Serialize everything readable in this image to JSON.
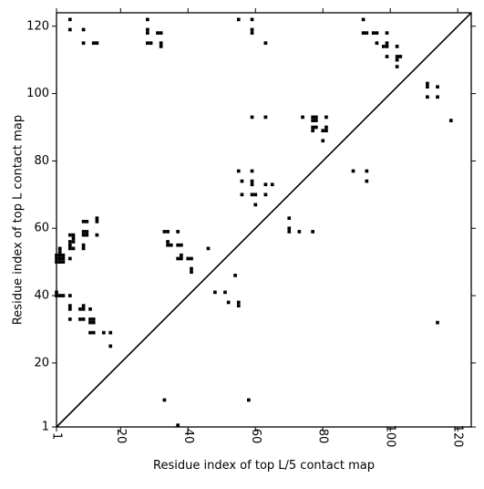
{
  "chart_data": {
    "type": "scatter",
    "title": "",
    "xlabel": "Residue index of top L/5 contact map",
    "ylabel": "Residue index of top L contact map",
    "xlim": [
      1,
      124
    ],
    "ylim": [
      1,
      124
    ],
    "x_ticks": [
      1,
      20,
      40,
      60,
      80,
      100,
      120
    ],
    "y_ticks": [
      1,
      20,
      40,
      60,
      80,
      100,
      120
    ],
    "x_tick_labels": [
      "1",
      "20",
      "40",
      "60",
      "80",
      "100",
      "120"
    ],
    "y_tick_labels": [
      "1",
      "20",
      "40",
      "60",
      "80",
      "100",
      "120"
    ],
    "x_tick_rotation_deg": 90,
    "grid": false,
    "legend": "none",
    "diagonal_line": true,
    "marker": "square",
    "marker_color": "#000000",
    "points": [
      [
        33,
        9
      ],
      [
        37,
        1.5
      ],
      [
        58,
        9
      ],
      [
        114,
        32
      ],
      [
        1,
        40
      ],
      [
        2,
        40
      ],
      [
        3,
        40
      ],
      [
        1,
        41
      ],
      [
        1,
        50
      ],
      [
        2,
        50
      ],
      [
        3,
        50
      ],
      [
        1,
        51
      ],
      [
        2,
        51
      ],
      [
        3,
        51
      ],
      [
        1,
        52
      ],
      [
        2,
        52
      ],
      [
        3,
        52
      ],
      [
        2,
        53
      ],
      [
        2,
        54
      ],
      [
        5,
        33
      ],
      [
        8,
        33
      ],
      [
        9,
        33
      ],
      [
        5,
        36
      ],
      [
        5,
        37
      ],
      [
        8,
        36
      ],
      [
        9,
        36
      ],
      [
        9,
        37
      ],
      [
        11,
        32
      ],
      [
        12,
        32
      ],
      [
        11,
        33
      ],
      [
        12,
        33
      ],
      [
        11,
        36
      ],
      [
        11,
        29
      ],
      [
        12,
        29
      ],
      [
        15,
        29
      ],
      [
        17,
        29
      ],
      [
        17,
        25
      ],
      [
        5,
        40
      ],
      [
        5,
        51
      ],
      [
        5,
        54
      ],
      [
        6,
        54
      ],
      [
        5,
        55
      ],
      [
        5,
        56
      ],
      [
        5,
        58
      ],
      [
        6,
        58
      ],
      [
        6,
        57
      ],
      [
        6,
        56
      ],
      [
        9,
        54
      ],
      [
        9,
        55
      ],
      [
        9,
        58
      ],
      [
        9,
        59
      ],
      [
        10,
        58
      ],
      [
        10,
        59
      ],
      [
        9,
        62
      ],
      [
        10,
        62
      ],
      [
        13,
        62
      ],
      [
        13,
        63
      ],
      [
        13,
        58
      ],
      [
        33,
        59
      ],
      [
        34,
        59
      ],
      [
        37,
        59
      ],
      [
        34,
        55
      ],
      [
        34,
        56
      ],
      [
        35,
        55
      ],
      [
        37,
        55
      ],
      [
        38,
        55
      ],
      [
        37,
        51
      ],
      [
        38,
        51
      ],
      [
        38,
        52
      ],
      [
        40,
        51
      ],
      [
        41,
        51
      ],
      [
        41,
        47
      ],
      [
        41,
        48
      ],
      [
        46,
        54
      ],
      [
        48,
        41
      ],
      [
        51,
        41
      ],
      [
        52,
        38
      ],
      [
        54,
        46
      ],
      [
        55,
        37
      ],
      [
        55,
        38
      ],
      [
        55,
        77
      ],
      [
        56,
        74
      ],
      [
        56,
        70
      ],
      [
        59,
        70
      ],
      [
        59,
        73
      ],
      [
        59,
        74
      ],
      [
        59,
        77
      ],
      [
        60,
        70
      ],
      [
        60,
        67
      ],
      [
        63,
        70
      ],
      [
        63,
        73
      ],
      [
        65,
        73
      ],
      [
        70,
        59
      ],
      [
        70,
        60
      ],
      [
        70,
        63
      ],
      [
        73,
        59
      ],
      [
        77,
        59
      ],
      [
        74,
        93
      ],
      [
        77,
        92
      ],
      [
        77,
        93
      ],
      [
        78,
        92
      ],
      [
        78,
        93
      ],
      [
        77,
        89
      ],
      [
        77,
        90
      ],
      [
        78,
        90
      ],
      [
        80,
        86
      ],
      [
        80,
        89
      ],
      [
        81,
        89
      ],
      [
        81,
        90
      ],
      [
        81,
        93
      ],
      [
        89,
        77
      ],
      [
        93,
        74
      ],
      [
        93,
        77
      ],
      [
        5,
        119
      ],
      [
        5,
        122
      ],
      [
        9,
        115
      ],
      [
        9,
        119
      ],
      [
        12,
        115
      ],
      [
        13,
        115
      ],
      [
        28,
        115
      ],
      [
        28,
        118
      ],
      [
        28,
        119
      ],
      [
        28,
        122
      ],
      [
        29,
        115
      ],
      [
        31,
        118
      ],
      [
        32,
        114
      ],
      [
        32,
        115
      ],
      [
        32,
        118
      ],
      [
        55,
        122
      ],
      [
        59,
        118
      ],
      [
        59,
        119
      ],
      [
        59,
        122
      ],
      [
        63,
        115
      ],
      [
        59,
        93
      ],
      [
        63,
        93
      ],
      [
        92,
        122
      ],
      [
        92,
        118
      ],
      [
        93,
        118
      ],
      [
        95,
        118
      ],
      [
        96,
        118
      ],
      [
        96,
        115
      ],
      [
        98,
        114
      ],
      [
        99,
        114
      ],
      [
        99,
        115
      ],
      [
        99,
        118
      ],
      [
        99,
        111
      ],
      [
        102,
        114
      ],
      [
        102,
        110
      ],
      [
        102,
        111
      ],
      [
        102,
        108
      ],
      [
        103,
        111
      ],
      [
        111,
        99
      ],
      [
        111,
        102
      ],
      [
        111,
        103
      ],
      [
        114,
        102
      ],
      [
        114,
        99
      ],
      [
        118,
        92
      ]
    ]
  }
}
